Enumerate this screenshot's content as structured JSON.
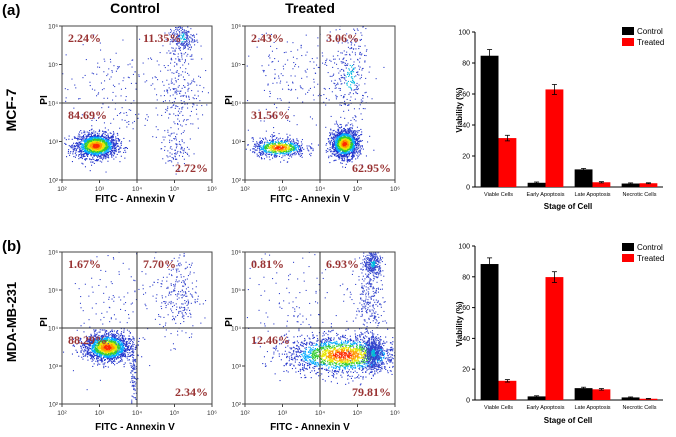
{
  "panels": [
    {
      "label": "(a)",
      "cell_line": "MCF-7",
      "plots": [
        {
          "title": "Control",
          "ylabel": "PI",
          "xlabel": "FITC - Annexin V",
          "quadrants": {
            "upper_left": "2.24%",
            "upper_right": "11.35%",
            "lower_left": "84.69%",
            "lower_right": "2.72%"
          },
          "populations": [
            {
              "x": 2.9,
              "y": 2.9,
              "n": 1600,
              "sx": 0.28,
              "sy": 0.16
            },
            {
              "x": 5.2,
              "y": 5.7,
              "n": 260,
              "sx": 0.18,
              "sy": 0.25
            },
            {
              "x": 5.1,
              "y": 4.3,
              "n": 220,
              "sx": 0.3,
              "sy": 0.55
            },
            {
              "x": 5.0,
              "y": 2.8,
              "n": 90,
              "sx": 0.18,
              "sy": 0.25
            },
            {
              "x": 3.3,
              "y": 4.3,
              "n": 160,
              "sx": 0.7,
              "sy": 0.7
            }
          ]
        },
        {
          "title": "Treated",
          "ylabel": "PI",
          "xlabel": "FITC - Annexin V",
          "quadrants": {
            "upper_left": "2.43%",
            "upper_right": "3.06%",
            "lower_left": "31.56%",
            "lower_right": "62.95%"
          },
          "populations": [
            {
              "x": 2.9,
              "y": 2.85,
              "n": 700,
              "sx": 0.35,
              "sy": 0.12
            },
            {
              "x": 4.65,
              "y": 2.95,
              "n": 1500,
              "sx": 0.18,
              "sy": 0.18
            },
            {
              "x": 4.8,
              "y": 4.7,
              "n": 300,
              "sx": 0.25,
              "sy": 0.7
            },
            {
              "x": 3.4,
              "y": 4.6,
              "n": 200,
              "sx": 0.8,
              "sy": 0.7
            }
          ]
        }
      ],
      "chart_data": {
        "type": "bar",
        "categories": [
          "Viable Cells",
          "Early Apoptosis",
          "Late Apoptosis",
          "Necrotic Cells"
        ],
        "series": [
          {
            "name": "Control",
            "values": [
              84.69,
              2.72,
              11.35,
              2.24
            ],
            "errors": [
              4.0,
              0.5,
              0.6,
              0.4
            ]
          },
          {
            "name": "Treated",
            "values": [
              31.56,
              62.95,
              3.06,
              2.43
            ],
            "errors": [
              1.8,
              3.2,
              0.4,
              0.3
            ]
          }
        ],
        "xlabel": "Stage of Cell",
        "ylabel": "Viability (%)",
        "ylim": [
          0,
          100
        ],
        "yticks": [
          "0",
          "20",
          "40",
          "60",
          "80",
          "100"
        ],
        "legend": "top-right",
        "colors": {
          "Control": "#000000",
          "Treated": "#ff0000"
        }
      }
    },
    {
      "label": "(b)",
      "cell_line": "MDA-MB-231",
      "plots": [
        {
          "title": "",
          "ylabel": "PI",
          "xlabel": "FITC - Annexin V",
          "quadrants": {
            "upper_left": "1.67%",
            "upper_right": "7.70%",
            "lower_left": "88.29%",
            "lower_right": "2.34%"
          },
          "populations": [
            {
              "x": 3.2,
              "y": 3.5,
              "n": 1700,
              "sx": 0.3,
              "sy": 0.18
            },
            {
              "x": 5.1,
              "y": 4.9,
              "n": 230,
              "sx": 0.25,
              "sy": 0.6
            },
            {
              "x": 3.9,
              "y": 2.8,
              "n": 120,
              "sx": 0.05,
              "sy": 0.55
            },
            {
              "x": 3.5,
              "y": 4.8,
              "n": 150,
              "sx": 0.8,
              "sy": 0.8
            }
          ]
        },
        {
          "title": "",
          "ylabel": "PI",
          "xlabel": "FITC - Annexin V",
          "quadrants": {
            "upper_left": "0.81%",
            "upper_right": "6.93%",
            "lower_left": "12.46%",
            "lower_right": "79.81%"
          },
          "populations": [
            {
              "x": 4.6,
              "y": 3.3,
              "n": 1900,
              "sx": 0.75,
              "sy": 0.25
            },
            {
              "x": 5.4,
              "y": 3.35,
              "n": 500,
              "sx": 0.12,
              "sy": 0.2
            },
            {
              "x": 5.4,
              "y": 5.7,
              "n": 320,
              "sx": 0.12,
              "sy": 0.18
            },
            {
              "x": 5.3,
              "y": 4.6,
              "n": 250,
              "sx": 0.2,
              "sy": 0.55
            },
            {
              "x": 3.6,
              "y": 4.6,
              "n": 150,
              "sx": 0.9,
              "sy": 0.8
            }
          ]
        }
      ],
      "chart_data": {
        "type": "bar",
        "categories": [
          "Viable Cells",
          "Early Apoptosis",
          "Late Apoptosis",
          "Necrotic Cells"
        ],
        "series": [
          {
            "name": "Control",
            "values": [
              88.29,
              2.34,
              7.7,
              1.67
            ],
            "errors": [
              4.0,
              0.4,
              0.6,
              0.3
            ]
          },
          {
            "name": "Treated",
            "values": [
              12.46,
              79.81,
              6.93,
              0.81
            ],
            "errors": [
              0.8,
              3.5,
              0.5,
              0.2
            ]
          }
        ],
        "xlabel": "Stage of Cell",
        "ylabel": "Viability (%)",
        "ylim": [
          0,
          100
        ],
        "yticks": [
          "0",
          "20",
          "40",
          "60",
          "80",
          "100"
        ],
        "legend": "top-right",
        "colors": {
          "Control": "#000000",
          "Treated": "#ff0000"
        }
      }
    }
  ],
  "flow_axis": {
    "x_ticks": [
      "10²",
      "10³",
      "10⁴",
      "10⁵",
      "10⁶"
    ],
    "y_ticks": [
      "10⁶",
      "10⁵",
      "10⁴",
      "10³",
      "10²"
    ],
    "range": [
      2,
      6
    ],
    "gate": [
      4,
      4
    ],
    "quadrant_text_color": "#993333"
  }
}
